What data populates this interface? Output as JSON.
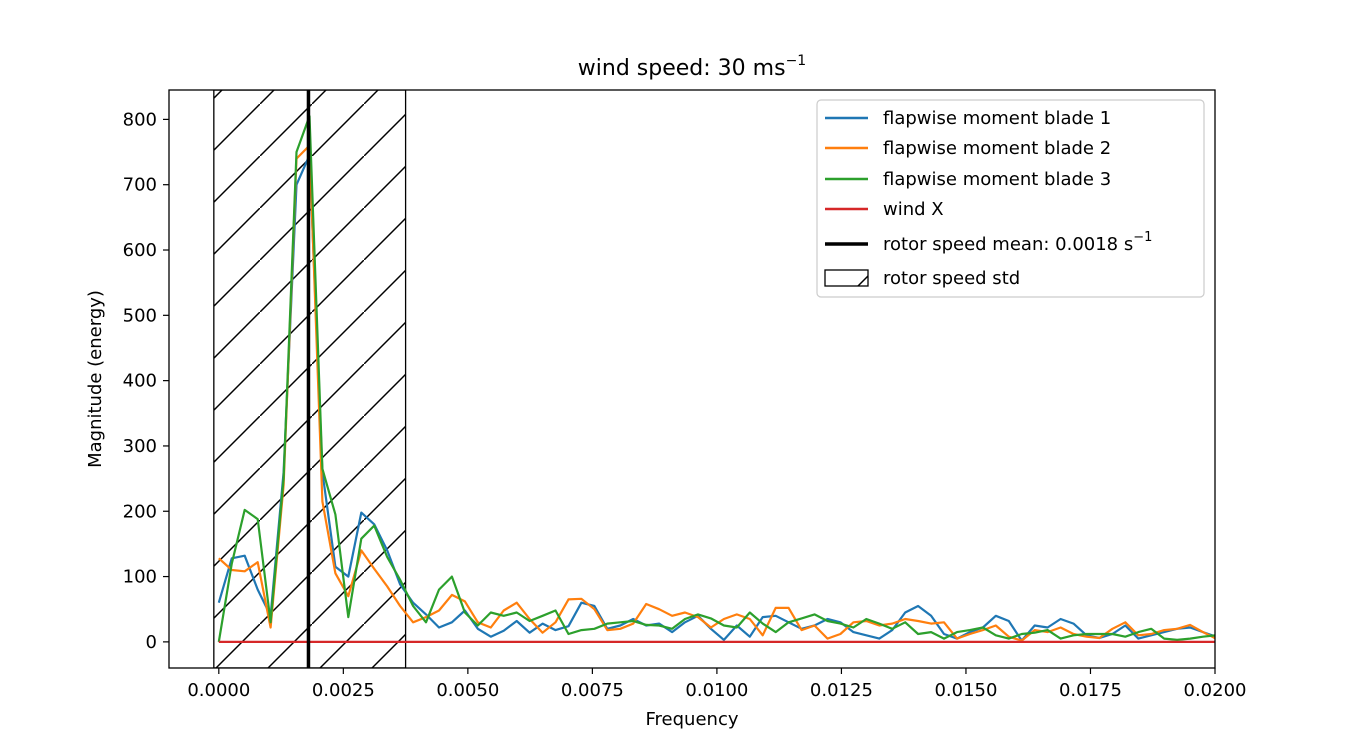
{
  "chart_data": {
    "type": "line",
    "title": "wind speed: 30 ms",
    "title_superscript": "−1",
    "xlabel": "Frequency",
    "ylabel": "Magnitude (energy)",
    "xlim": [
      -0.001,
      0.02
    ],
    "ylim": [
      -40,
      845
    ],
    "xticks": [
      0.0,
      0.0025,
      0.005,
      0.0075,
      0.01,
      0.0125,
      0.015,
      0.0175,
      0.02
    ],
    "xtick_labels": [
      "0.0000",
      "0.0025",
      "0.0050",
      "0.0075",
      "0.0100",
      "0.0125",
      "0.0150",
      "0.0175",
      "0.0200"
    ],
    "yticks": [
      0,
      100,
      200,
      300,
      400,
      500,
      600,
      700,
      800
    ],
    "ytick_labels": [
      "0",
      "100",
      "200",
      "300",
      "400",
      "500",
      "600",
      "700",
      "800"
    ],
    "grid": false,
    "legend_placement": "top-right",
    "series": [
      {
        "name": "flapwise moment blade 1",
        "color": "#1f77b4",
        "x": [
          0.0,
          0.00026,
          0.00052,
          0.00078,
          0.00104,
          0.0013,
          0.00156,
          0.00182,
          0.00208,
          0.00234,
          0.0026,
          0.00286,
          0.00312,
          0.00338,
          0.00364,
          0.0039,
          0.00416,
          0.00442,
          0.00468,
          0.00494,
          0.0052,
          0.00546,
          0.00572,
          0.00598,
          0.00624,
          0.0065,
          0.00676,
          0.00702,
          0.00728,
          0.00754,
          0.0078,
          0.00806,
          0.00832,
          0.00858,
          0.00884,
          0.0091,
          0.00936,
          0.00962,
          0.00988,
          0.01014,
          0.0104,
          0.01066,
          0.01092,
          0.01118,
          0.01144,
          0.0117,
          0.01196,
          0.01222,
          0.01248,
          0.01274,
          0.013,
          0.01326,
          0.01352,
          0.01378,
          0.01404,
          0.0143,
          0.01456,
          0.01482,
          0.01508,
          0.01534,
          0.0156,
          0.01586,
          0.01612,
          0.01638,
          0.01664,
          0.0169,
          0.01716,
          0.01742,
          0.01768,
          0.01794,
          0.0182,
          0.01846,
          0.01872,
          0.01898,
          0.01924,
          0.0195,
          0.01976,
          0.02002
        ],
        "y": [
          60,
          128,
          132,
          80,
          40,
          260,
          700,
          745,
          260,
          115,
          100,
          198,
          180,
          140,
          88,
          60,
          42,
          22,
          30,
          48,
          20,
          8,
          17,
          32,
          14,
          28,
          18,
          24,
          60,
          55,
          20,
          25,
          35,
          25,
          28,
          15,
          30,
          40,
          20,
          3,
          25,
          8,
          38,
          40,
          30,
          20,
          25,
          35,
          30,
          15,
          10,
          5,
          18,
          45,
          55,
          40,
          12,
          5,
          15,
          22,
          40,
          32,
          2,
          25,
          22,
          35,
          28,
          10,
          6,
          12,
          25,
          5,
          10,
          15,
          20,
          22,
          15,
          8
        ]
      },
      {
        "name": "flapwise moment blade 2",
        "color": "#ff7f0e",
        "x": [
          0.0,
          0.00026,
          0.00052,
          0.00078,
          0.00104,
          0.0013,
          0.00156,
          0.00182,
          0.00208,
          0.00234,
          0.0026,
          0.00286,
          0.00312,
          0.00338,
          0.00364,
          0.0039,
          0.00416,
          0.00442,
          0.00468,
          0.00494,
          0.0052,
          0.00546,
          0.00572,
          0.00598,
          0.00624,
          0.0065,
          0.00676,
          0.00702,
          0.00728,
          0.00754,
          0.0078,
          0.00806,
          0.00832,
          0.00858,
          0.00884,
          0.0091,
          0.00936,
          0.00962,
          0.00988,
          0.01014,
          0.0104,
          0.01066,
          0.01092,
          0.01118,
          0.01144,
          0.0117,
          0.01196,
          0.01222,
          0.01248,
          0.01274,
          0.013,
          0.01326,
          0.01352,
          0.01378,
          0.01404,
          0.0143,
          0.01456,
          0.01482,
          0.01508,
          0.01534,
          0.0156,
          0.01586,
          0.01612,
          0.01638,
          0.01664,
          0.0169,
          0.01716,
          0.01742,
          0.01768,
          0.01794,
          0.0182,
          0.01846,
          0.01872,
          0.01898,
          0.01924,
          0.0195,
          0.01976,
          0.02002
        ],
        "y": [
          128,
          110,
          108,
          122,
          22,
          240,
          740,
          760,
          215,
          105,
          70,
          140,
          112,
          85,
          55,
          30,
          38,
          48,
          72,
          62,
          30,
          22,
          48,
          60,
          35,
          14,
          30,
          65,
          66,
          50,
          18,
          20,
          28,
          58,
          50,
          40,
          45,
          38,
          22,
          35,
          42,
          35,
          10,
          52,
          52,
          18,
          25,
          5,
          12,
          30,
          32,
          25,
          28,
          35,
          32,
          28,
          30,
          5,
          12,
          18,
          25,
          8,
          2,
          18,
          15,
          22,
          12,
          8,
          6,
          20,
          30,
          10,
          12,
          18,
          20,
          26,
          15,
          5
        ]
      },
      {
        "name": "flapwise moment blade 3",
        "color": "#2ca02c",
        "x": [
          0.0,
          0.00026,
          0.00052,
          0.00078,
          0.00104,
          0.0013,
          0.00156,
          0.00182,
          0.00208,
          0.00234,
          0.0026,
          0.00286,
          0.00312,
          0.00338,
          0.00364,
          0.0039,
          0.00416,
          0.00442,
          0.00468,
          0.00494,
          0.0052,
          0.00546,
          0.00572,
          0.00598,
          0.00624,
          0.0065,
          0.00676,
          0.00702,
          0.00728,
          0.00754,
          0.0078,
          0.00806,
          0.00832,
          0.00858,
          0.00884,
          0.0091,
          0.00936,
          0.00962,
          0.00988,
          0.01014,
          0.0104,
          0.01066,
          0.01092,
          0.01118,
          0.01144,
          0.0117,
          0.01196,
          0.01222,
          0.01248,
          0.01274,
          0.013,
          0.01326,
          0.01352,
          0.01378,
          0.01404,
          0.0143,
          0.01456,
          0.01482,
          0.01508,
          0.01534,
          0.0156,
          0.01586,
          0.01612,
          0.01638,
          0.01664,
          0.0169,
          0.01716,
          0.01742,
          0.01768,
          0.01794,
          0.0182,
          0.01846,
          0.01872,
          0.01898,
          0.01924,
          0.0195,
          0.01976,
          0.02002
        ],
        "y": [
          0,
          120,
          202,
          188,
          30,
          250,
          750,
          805,
          265,
          195,
          38,
          158,
          178,
          130,
          95,
          55,
          30,
          80,
          100,
          45,
          25,
          45,
          40,
          45,
          32,
          40,
          48,
          12,
          18,
          20,
          28,
          30,
          32,
          26,
          25,
          20,
          35,
          42,
          36,
          25,
          22,
          45,
          28,
          15,
          30,
          36,
          42,
          32,
          28,
          22,
          35,
          28,
          20,
          30,
          12,
          15,
          5,
          15,
          18,
          22,
          10,
          5,
          12,
          14,
          18,
          5,
          10,
          12,
          12,
          12,
          8,
          15,
          20,
          5,
          3,
          5,
          8,
          10
        ]
      },
      {
        "name": "wind X",
        "color": "#d62728",
        "x": [
          0.0,
          0.02002
        ],
        "y": [
          0,
          0
        ]
      }
    ],
    "vline": {
      "name": "rotor speed mean: 0.0018 s",
      "name_superscript": "−1",
      "x": 0.0018,
      "color": "#000000"
    },
    "band": {
      "name": "rotor speed std",
      "x_start": -0.0001,
      "x_end": 0.00375,
      "hatch": "diagonal"
    }
  }
}
